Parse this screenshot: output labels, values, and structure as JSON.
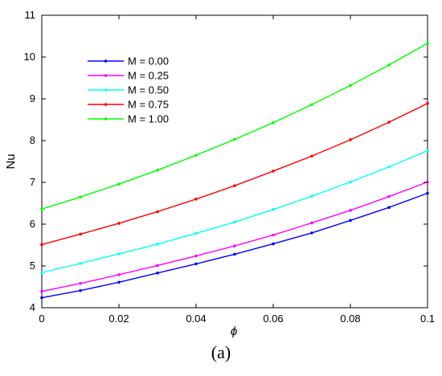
{
  "panel_label": "(a)",
  "chart_data": {
    "type": "line",
    "xlabel": "ϕ",
    "ylabel": "Nu",
    "xlim": [
      0,
      0.1
    ],
    "ylim": [
      4,
      11
    ],
    "x_ticks": [
      "0",
      "0.02",
      "0.04",
      "0.06",
      "0.08",
      "0.1"
    ],
    "y_ticks": [
      "4",
      "5",
      "6",
      "7",
      "8",
      "9",
      "10",
      "11"
    ],
    "grid": false,
    "legend_position": "upper-left",
    "x": [
      0,
      0.01,
      0.02,
      0.03,
      0.04,
      0.05,
      0.06,
      0.07,
      0.08,
      0.09,
      0.1
    ],
    "series": [
      {
        "name": "M = 0.00",
        "color": "#0000ff",
        "values": [
          4.24,
          4.41,
          4.61,
          4.83,
          5.05,
          5.28,
          5.53,
          5.79,
          6.09,
          6.4,
          6.74
        ]
      },
      {
        "name": "M = 0.25",
        "color": "#ff00ff",
        "values": [
          4.39,
          4.58,
          4.79,
          5.01,
          5.24,
          5.48,
          5.74,
          6.03,
          6.33,
          6.66,
          7.01
        ]
      },
      {
        "name": "M = 0.50",
        "color": "#00ffff",
        "values": [
          4.84,
          5.06,
          5.29,
          5.52,
          5.78,
          6.05,
          6.35,
          6.67,
          7.01,
          7.37,
          7.76
        ]
      },
      {
        "name": "M = 0.75",
        "color": "#ff0000",
        "values": [
          5.51,
          5.76,
          6.02,
          6.3,
          6.6,
          6.92,
          7.27,
          7.63,
          8.02,
          8.44,
          8.89
        ]
      },
      {
        "name": "M = 1.00",
        "color": "#00ff00",
        "values": [
          6.36,
          6.65,
          6.96,
          7.29,
          7.65,
          8.03,
          8.43,
          8.86,
          9.32,
          9.81,
          10.33
        ]
      }
    ]
  }
}
